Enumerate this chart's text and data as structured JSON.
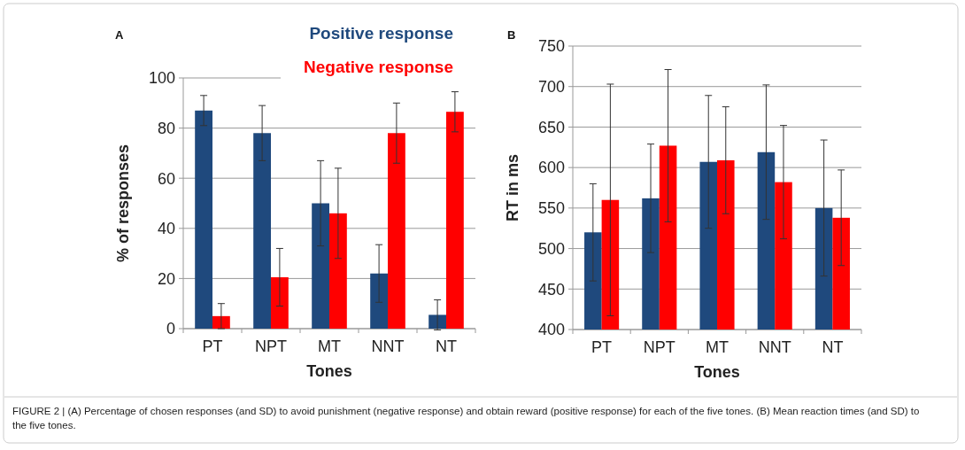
{
  "chart_data": [
    {
      "type": "bar",
      "title": "A",
      "xlabel": "Tones",
      "ylabel": "% of responses",
      "categories": [
        "PT",
        "NPT",
        "MT",
        "NNT",
        "NT"
      ],
      "ylim": [
        0,
        100
      ],
      "yticks": [
        0,
        20,
        40,
        60,
        80,
        100
      ],
      "grid": "y",
      "legend": "top right",
      "series": [
        {
          "name": "Positive response",
          "color": "#1f497d",
          "values": [
            87,
            78,
            50,
            22,
            5.5
          ],
          "errors": [
            6,
            11,
            17,
            11.5,
            6
          ]
        },
        {
          "name": "Negative response",
          "color": "#ff0000",
          "values": [
            5,
            20.5,
            46,
            78,
            86.5
          ],
          "errors": [
            5,
            11.5,
            18,
            12,
            8
          ]
        }
      ]
    },
    {
      "type": "bar",
      "title": "B",
      "xlabel": "Tones",
      "ylabel": "RT in ms",
      "categories": [
        "PT",
        "NPT",
        "MT",
        "NNT",
        "NT"
      ],
      "ylim": [
        400,
        750
      ],
      "yticks": [
        400,
        450,
        500,
        550,
        600,
        650,
        700,
        750
      ],
      "grid": "y",
      "annotations": [
        "FIGURE 2 | (A) Percentage of chosen responses (and SD) to avoid punishment (negative response) and obtain reward (positive response) for each of the five tones. (B) Mean reaction times (and SD) to the five tones."
      ],
      "series": [
        {
          "color": "#1f497d",
          "values": [
            520,
            562,
            607,
            619,
            550
          ],
          "errors": [
            60,
            67,
            82,
            83,
            84
          ]
        },
        {
          "color": "#ff0000",
          "values": [
            560,
            627,
            609,
            582,
            538
          ],
          "errors": [
            143,
            94,
            66,
            70,
            59
          ]
        }
      ]
    }
  ]
}
